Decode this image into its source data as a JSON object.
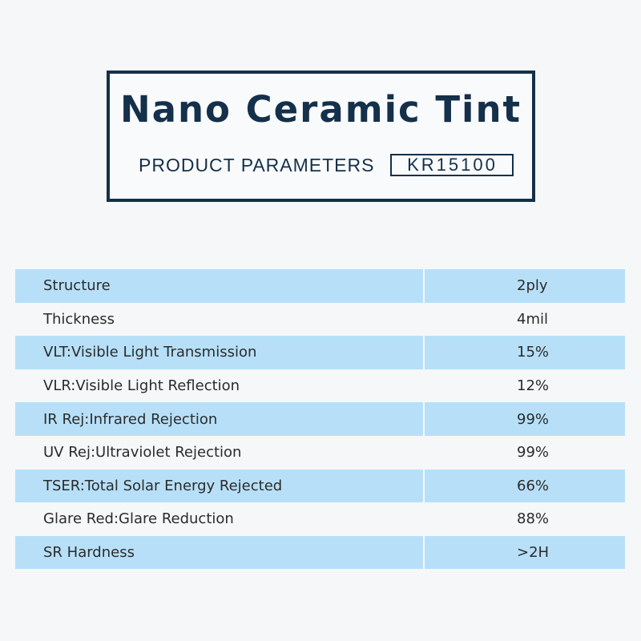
{
  "header": {
    "title": "Nano Ceramic Tint",
    "subtitle": "PRODUCT PARAMETERS",
    "model": "KR15100"
  },
  "colors": {
    "navy": "#14304a",
    "row_highlight": "#b7e0f8",
    "background": "#f6f7f8"
  },
  "parameters": [
    {
      "label": "Structure",
      "value": "2ply"
    },
    {
      "label": "Thickness",
      "value": "4mil"
    },
    {
      "label": "VLT:Visible Light Transmission",
      "value": "15%"
    },
    {
      "label": "VLR:Visible Light Reflection",
      "value": "12%"
    },
    {
      "label": "IR Rej:Infrared Rejection",
      "value": "99%"
    },
    {
      "label": "UV Rej:Ultraviolet Rejection",
      "value": "99%"
    },
    {
      "label": "TSER:Total Solar Energy Rejected",
      "value": "66%"
    },
    {
      "label": "Glare Red:Glare Reduction",
      "value": "88%"
    },
    {
      "label": "SR Hardness",
      "value": ">2H"
    }
  ]
}
